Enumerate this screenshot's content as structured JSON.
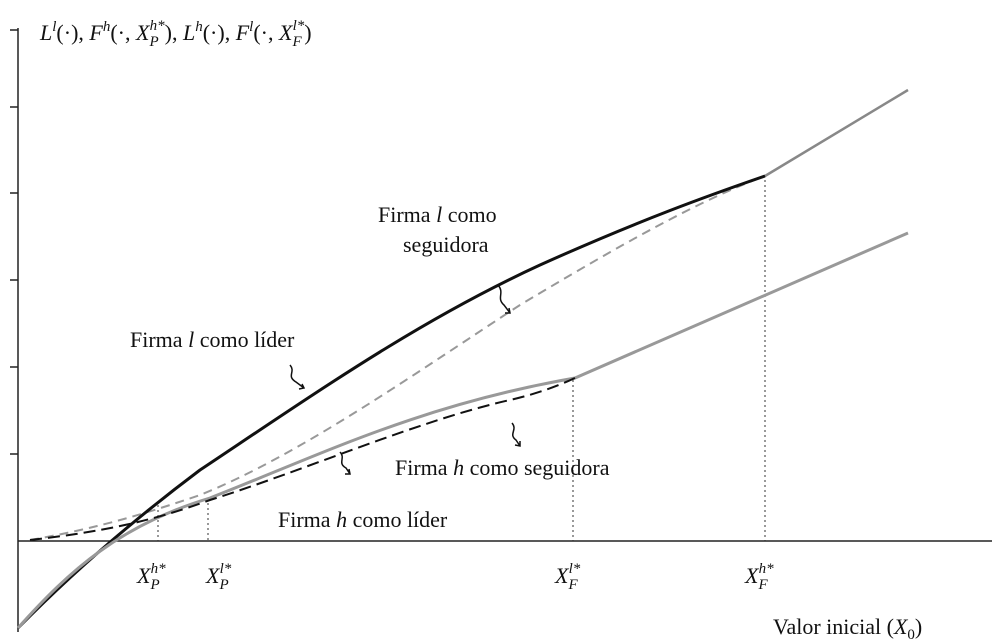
{
  "y_axis_label": [
    "L",
    "l",
    "(·), ",
    "F",
    "h",
    "(·, ",
    "X",
    "P",
    "h*",
    "), ",
    "L",
    "h",
    "(·), ",
    "F",
    "l",
    "(·, ",
    "X",
    "F",
    "l*",
    ")"
  ],
  "x_axis_label": [
    "Valor inicial (",
    "X",
    "0",
    ")"
  ],
  "x_markers": [
    {
      "base": "X",
      "sub": "P",
      "sup": "h*"
    },
    {
      "base": "X",
      "sub": "P",
      "sup": "l*"
    },
    {
      "base": "X",
      "sub": "F",
      "sup": "l*"
    },
    {
      "base": "X",
      "sub": "F",
      "sup": "h*"
    }
  ],
  "annotations": {
    "l_follower": [
      "Firma ",
      "l",
      " como",
      "seguidora"
    ],
    "l_leader": [
      "Firma ",
      "l",
      " como líder"
    ],
    "h_follower": [
      "Firma ",
      "h",
      " como seguidora"
    ],
    "h_leader": [
      "Firma ",
      "h",
      " como líder"
    ]
  }
}
